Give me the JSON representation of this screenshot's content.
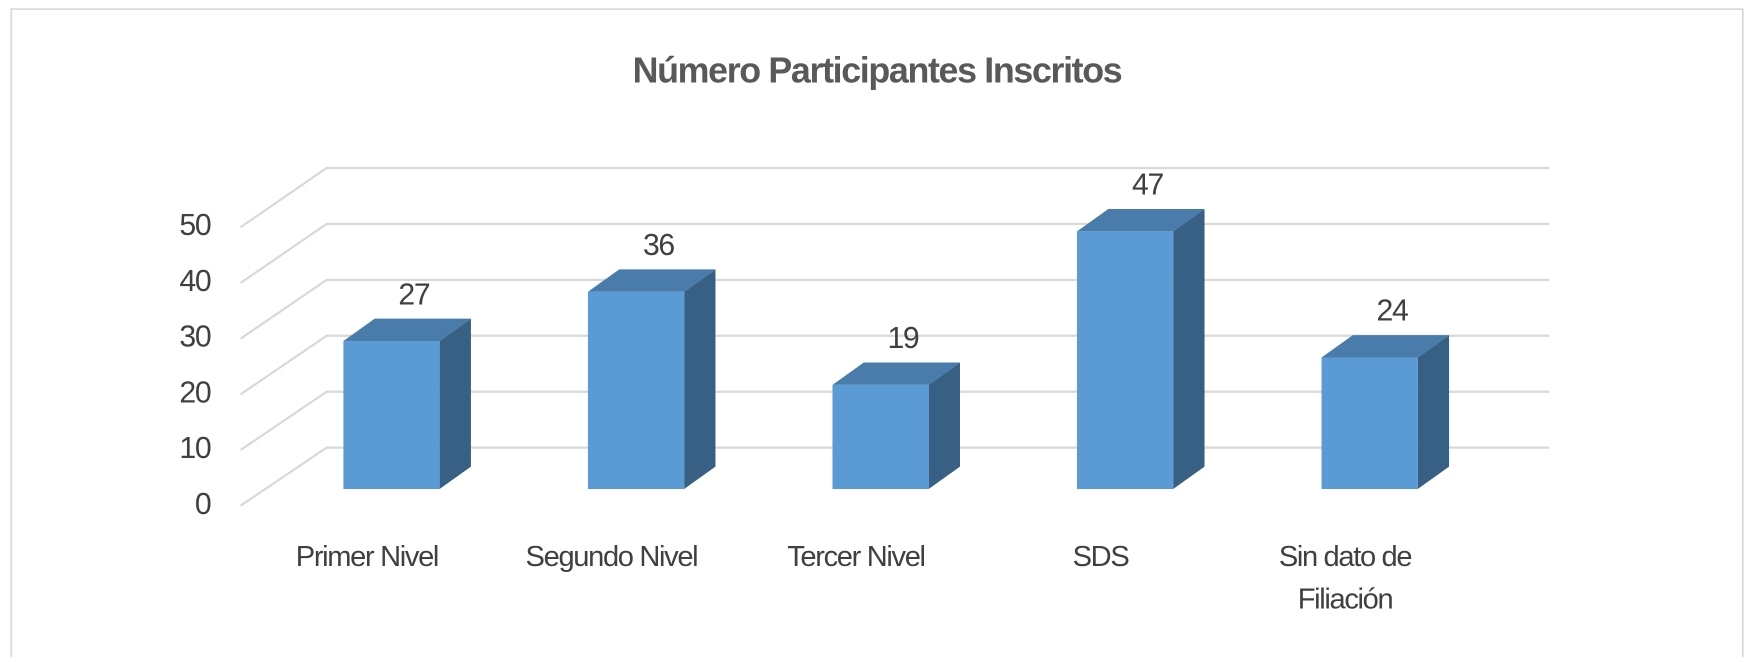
{
  "chart_data": {
    "type": "bar3d",
    "title": "Número Participantes Inscritos",
    "categories": [
      "Primer Nivel",
      "Segundo Nivel",
      "Tercer Nivel",
      "SDS",
      "Sin dato de Filiación"
    ],
    "values": [
      27,
      36,
      19,
      47,
      24
    ],
    "color": "#5b9bd5",
    "ylim": [
      0,
      50
    ],
    "yticks": [
      0,
      10,
      20,
      30,
      40,
      50
    ],
    "grid": true
  }
}
